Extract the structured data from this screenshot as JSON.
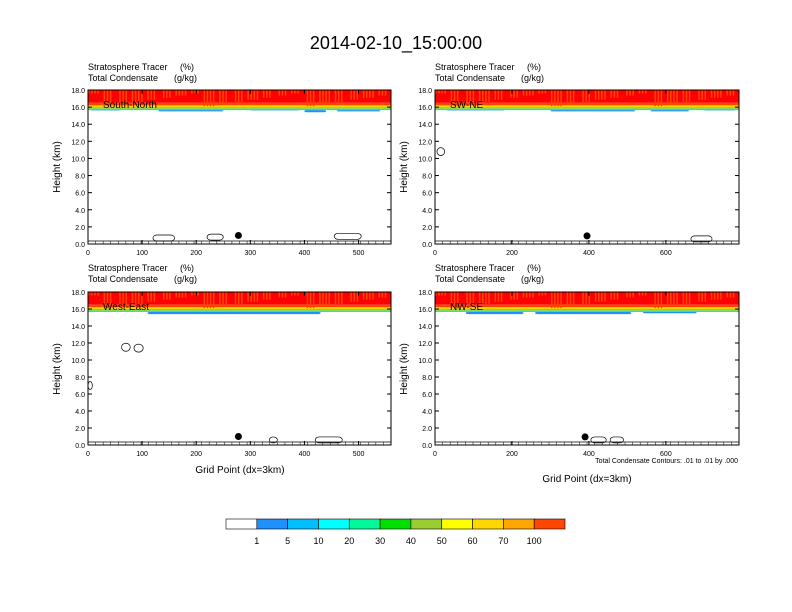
{
  "page": {
    "title": "2014-02-10_15:00:00"
  },
  "colorbar": {
    "colors": [
      "#ffffff",
      "#1e90ff",
      "#00bfff",
      "#00ffff",
      "#00fa9a",
      "#00e000",
      "#9acd32",
      "#ffff00",
      "#ffd700",
      "#ffa500",
      "#ff4500",
      "#ff0000"
    ],
    "labels": [
      "1",
      "5",
      "10",
      "20",
      "30",
      "40",
      "50",
      "60",
      "70",
      "100"
    ]
  },
  "footnote": "Total Condensate Contours: .01 to .01 by .000",
  "chart_data": [
    {
      "type": "heatmap",
      "name": "South-North",
      "subtitle_line1_left": "Stratosphere Tracer",
      "subtitle_line1_right": "(%)",
      "subtitle_line2_left": "Total Condensate",
      "subtitle_line2_right": "(g/kg)",
      "panel_label": "South-North",
      "ylabel": "Height (km)",
      "xlabel": "",
      "xlim": [
        0,
        560
      ],
      "ylim": [
        0,
        18
      ],
      "xticks": [
        0,
        100,
        200,
        300,
        400,
        500
      ],
      "yticks": [
        "0.0",
        "2.0",
        "4.0",
        "6.0",
        "8.0",
        "10.0",
        "12.0",
        "14.0",
        "16.0",
        "18.0"
      ],
      "tracer_top_km": 16.0,
      "cloud_band": [
        [
          5,
          60,
          15.6
        ],
        [
          130,
          250,
          15.5
        ],
        [
          300,
          390,
          15.6
        ],
        [
          400,
          440,
          15.4
        ],
        [
          460,
          540,
          15.5
        ]
      ],
      "dots": [
        [
          278,
          1.0
        ]
      ],
      "low_contours": [
        [
          120,
          160,
          0.7
        ],
        [
          220,
          250,
          0.8
        ],
        [
          455,
          505,
          0.9
        ]
      ]
    },
    {
      "type": "heatmap",
      "name": "SW-NE",
      "subtitle_line1_left": "Stratosphere Tracer",
      "subtitle_line1_right": "(%)",
      "subtitle_line2_left": "Total Condensate",
      "subtitle_line2_right": "(g/kg)",
      "panel_label": "SW-NE",
      "ylabel": "Height (km)",
      "xlabel": "",
      "xlim": [
        0,
        790
      ],
      "ylim": [
        0,
        18
      ],
      "xticks": [
        0,
        200,
        400,
        600
      ],
      "yticks": [
        "0.0",
        "2.0",
        "4.0",
        "6.0",
        "8.0",
        "10.0",
        "12.0",
        "14.0",
        "16.0",
        "18.0"
      ],
      "tracer_top_km": 16.0,
      "cloud_band": [
        [
          30,
          180,
          15.6
        ],
        [
          300,
          520,
          15.5
        ],
        [
          560,
          660,
          15.5
        ],
        [
          700,
          780,
          15.6
        ]
      ],
      "dots": [
        [
          395,
          0.95
        ]
      ],
      "low_contours": [
        [
          665,
          720,
          0.6
        ]
      ],
      "mid_contours": [
        [
          5,
          25,
          10.8
        ]
      ]
    },
    {
      "type": "heatmap",
      "name": "West-East",
      "subtitle_line1_left": "Stratosphere Tracer",
      "subtitle_line1_right": "(%)",
      "subtitle_line2_left": "Total Condensate",
      "subtitle_line2_right": "(g/kg)",
      "panel_label": "West-East",
      "ylabel": "Height (km)",
      "xlabel": "Grid Point (dx=3km)",
      "xlim": [
        0,
        560
      ],
      "ylim": [
        0,
        18
      ],
      "xticks": [
        0,
        100,
        200,
        300,
        400,
        500
      ],
      "yticks": [
        "0.0",
        "2.0",
        "4.0",
        "6.0",
        "8.0",
        "10.0",
        "12.0",
        "14.0",
        "16.0",
        "18.0"
      ],
      "tracer_top_km": 16.0,
      "cloud_band": [
        [
          110,
          430,
          15.4
        ]
      ],
      "dots": [
        [
          278,
          1.0
        ]
      ],
      "low_contours": [
        [
          335,
          350,
          0.6
        ],
        [
          420,
          470,
          0.6
        ]
      ],
      "mid_contours": [
        [
          62,
          78,
          11.5
        ],
        [
          85,
          102,
          11.4
        ],
        [
          0,
          8,
          7.0
        ]
      ]
    },
    {
      "type": "heatmap",
      "name": "NW-SE",
      "subtitle_line1_left": "Stratosphere Tracer",
      "subtitle_line1_right": "(%)",
      "subtitle_line2_left": "Total Condensate",
      "subtitle_line2_right": "(g/kg)",
      "panel_label": "NW-SE",
      "ylabel": "Height (km)",
      "xlabel": "Grid Point (dx=3km)",
      "xlim": [
        0,
        790
      ],
      "ylim": [
        0,
        18
      ],
      "xticks": [
        0,
        200,
        400,
        600
      ],
      "yticks": [
        "0.0",
        "2.0",
        "4.0",
        "6.0",
        "8.0",
        "10.0",
        "12.0",
        "14.0",
        "16.0",
        "18.0"
      ],
      "tracer_top_km": 16.0,
      "cloud_band": [
        [
          80,
          230,
          15.4
        ],
        [
          260,
          510,
          15.4
        ],
        [
          540,
          680,
          15.5
        ]
      ],
      "dots": [
        [
          390,
          0.95
        ]
      ],
      "low_contours": [
        [
          405,
          445,
          0.6
        ],
        [
          455,
          490,
          0.6
        ]
      ]
    }
  ]
}
